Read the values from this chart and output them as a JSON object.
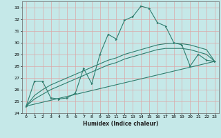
{
  "title": "",
  "xlabel": "Humidex (Indice chaleur)",
  "ylabel": "",
  "bg_color": "#c5e8e8",
  "grid_color": "#dba8a8",
  "line_color": "#2e7d6e",
  "ylim": [
    24,
    33.5
  ],
  "xlim": [
    -0.5,
    23.5
  ],
  "yticks": [
    24,
    25,
    26,
    27,
    28,
    29,
    30,
    31,
    32,
    33
  ],
  "xticks": [
    0,
    1,
    2,
    3,
    4,
    5,
    6,
    7,
    8,
    9,
    10,
    11,
    12,
    13,
    14,
    15,
    16,
    17,
    18,
    19,
    20,
    21,
    22,
    23
  ],
  "series1_x": [
    0,
    1,
    2,
    3,
    4,
    5,
    6,
    7,
    8,
    9,
    10,
    11,
    12,
    13,
    14,
    15,
    16,
    17,
    18,
    19,
    20,
    21,
    22,
    23
  ],
  "series1_y": [
    24.6,
    26.7,
    26.7,
    25.3,
    25.2,
    25.3,
    25.7,
    27.8,
    26.5,
    29.0,
    30.7,
    30.3,
    31.9,
    32.2,
    33.1,
    32.9,
    31.7,
    31.4,
    30.0,
    29.8,
    28.0,
    29.0,
    28.5,
    28.4
  ],
  "series2_x": [
    0,
    1,
    2,
    3,
    4,
    5,
    6,
    7,
    8,
    9,
    10,
    11,
    12,
    13,
    14,
    15,
    16,
    17,
    18,
    19,
    20,
    21,
    22,
    23
  ],
  "series2_y": [
    24.6,
    25.5,
    26.0,
    26.4,
    26.7,
    27.0,
    27.3,
    27.6,
    27.9,
    28.2,
    28.5,
    28.7,
    29.0,
    29.2,
    29.4,
    29.6,
    29.8,
    29.9,
    29.95,
    29.9,
    29.8,
    29.6,
    29.4,
    28.4
  ],
  "series3_x": [
    0,
    1,
    2,
    3,
    4,
    5,
    6,
    7,
    8,
    9,
    10,
    11,
    12,
    13,
    14,
    15,
    16,
    17,
    18,
    19,
    20,
    21,
    22,
    23
  ],
  "series3_y": [
    24.6,
    25.2,
    25.6,
    26.0,
    26.3,
    26.6,
    26.9,
    27.2,
    27.5,
    27.8,
    28.1,
    28.3,
    28.6,
    28.8,
    29.0,
    29.2,
    29.4,
    29.5,
    29.5,
    29.5,
    29.4,
    29.2,
    29.0,
    28.4
  ],
  "series4_x": [
    0,
    23
  ],
  "series4_y": [
    24.6,
    28.4
  ]
}
